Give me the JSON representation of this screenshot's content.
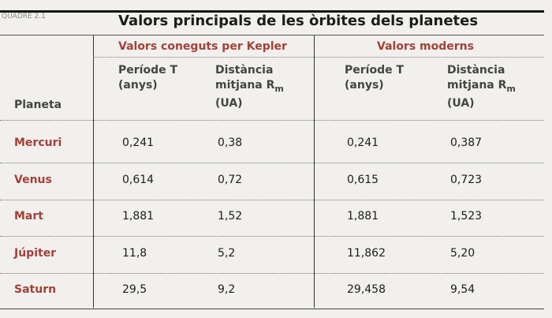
{
  "label": "QUADRE 2.1",
  "title": "Valors principals de les òrbites dels planetes",
  "groups": [
    "Valors coneguts per Kepler",
    "Valors moderns"
  ],
  "columns": {
    "planet": "Planeta",
    "period": [
      "Període T",
      "(anys)"
    ],
    "distance": {
      "line1": "Distància",
      "line2": "mitjana R",
      "subscript": "m",
      "unit": "(UA)"
    }
  },
  "rows": [
    [
      "Mercuri",
      "0,241",
      "0,38",
      "0,241",
      "0,387"
    ],
    [
      "Venus",
      "0,614",
      "0,72",
      "0,615",
      "0,723"
    ],
    [
      "Mart",
      "1,881",
      "1,52",
      "1,881",
      "1,523"
    ],
    [
      "Júpiter",
      "11,8",
      "5,2",
      "11,862",
      "5,20"
    ],
    [
      "Saturn",
      "29,5",
      "9,2",
      "29,458",
      "9,54"
    ]
  ]
}
